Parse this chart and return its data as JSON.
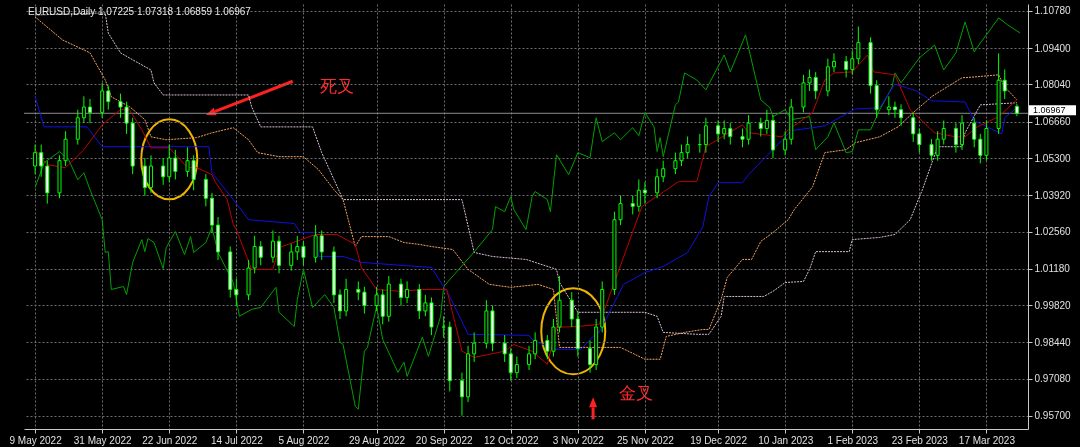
{
  "chart_data": {
    "type": "candlestick",
    "title": "EURUSD,Daily  1.07225 1.07318 1.06859 1.06967",
    "color": "#00ff00",
    "x": [
      "2022-05-09",
      "2022-05-11",
      "2022-05-13",
      "2022-05-17",
      "2022-05-19",
      "2022-05-23",
      "2022-05-25",
      "2022-05-27",
      "2022-05-31",
      "2022-06-02",
      "2022-06-06",
      "2022-06-08",
      "2022-06-10",
      "2022-06-14",
      "2022-06-16",
      "2022-06-20",
      "2022-06-22",
      "2022-06-24",
      "2022-06-28",
      "2022-06-30",
      "2022-07-04",
      "2022-07-06",
      "2022-07-08",
      "2022-07-12",
      "2022-07-14",
      "2022-07-18",
      "2022-07-20",
      "2022-07-22",
      "2022-07-26",
      "2022-07-28",
      "2022-08-01",
      "2022-08-03",
      "2022-08-05",
      "2022-08-09",
      "2022-08-11",
      "2022-08-15",
      "2022-08-17",
      "2022-08-19",
      "2022-08-23",
      "2022-08-25",
      "2022-08-29",
      "2022-08-31",
      "2022-09-02",
      "2022-09-06",
      "2022-09-08",
      "2022-09-12",
      "2022-09-14",
      "2022-09-16",
      "2022-09-20",
      "2022-09-22",
      "2022-09-26",
      "2022-09-28",
      "2022-09-30",
      "2022-10-04",
      "2022-10-06",
      "2022-10-10",
      "2022-10-12",
      "2022-10-14",
      "2022-10-18",
      "2022-10-20",
      "2022-10-24",
      "2022-10-26",
      "2022-10-28",
      "2022-11-01",
      "2022-11-03",
      "2022-11-07",
      "2022-11-09",
      "2022-11-11",
      "2022-11-15",
      "2022-11-17",
      "2022-11-21",
      "2022-11-23",
      "2022-11-25",
      "2022-11-29",
      "2022-12-01",
      "2022-12-05",
      "2022-12-07",
      "2022-12-09",
      "2022-12-13",
      "2022-12-15",
      "2022-12-19",
      "2022-12-21",
      "2022-12-23",
      "2022-12-27",
      "2022-12-29",
      "2023-01-02",
      "2023-01-04",
      "2023-01-06",
      "2023-01-10",
      "2023-01-12",
      "2023-01-16",
      "2023-01-18",
      "2023-01-20",
      "2023-01-24",
      "2023-01-26",
      "2023-01-30",
      "2023-02-01",
      "2023-02-03",
      "2023-02-07",
      "2023-02-09",
      "2023-02-13",
      "2023-02-15",
      "2023-02-17",
      "2023-02-21",
      "2023-02-23",
      "2023-02-27",
      "2023-03-01",
      "2023-03-03",
      "2023-03-07",
      "2023-03-09",
      "2023-03-13",
      "2023-03-15",
      "2023-03-17",
      "2023-03-21",
      "2023-03-23",
      "2023-03-27"
    ],
    "ohlc": [
      [
        1.05,
        1.058,
        1.047,
        1.055
      ],
      [
        1.055,
        1.058,
        1.046,
        1.05
      ],
      [
        1.05,
        1.052,
        1.036,
        1.04
      ],
      [
        1.04,
        1.054,
        1.038,
        1.052
      ],
      [
        1.052,
        1.063,
        1.05,
        1.06
      ],
      [
        1.06,
        1.071,
        1.058,
        1.068
      ],
      [
        1.068,
        1.076,
        1.066,
        1.072
      ],
      [
        1.072,
        1.075,
        1.066,
        1.07
      ],
      [
        1.07,
        1.081,
        1.068,
        1.078
      ],
      [
        1.078,
        1.08,
        1.071,
        1.074
      ],
      [
        1.074,
        1.077,
        1.068,
        1.072
      ],
      [
        1.072,
        1.074,
        1.062,
        1.066
      ],
      [
        1.066,
        1.068,
        1.047,
        1.05
      ],
      [
        1.05,
        1.053,
        1.039,
        1.042
      ],
      [
        1.042,
        1.054,
        1.04,
        1.05
      ],
      [
        1.05,
        1.053,
        1.043,
        1.046
      ],
      [
        1.046,
        1.058,
        1.044,
        1.053
      ],
      [
        1.053,
        1.056,
        1.045,
        1.048
      ],
      [
        1.048,
        1.057,
        1.046,
        1.052
      ],
      [
        1.052,
        1.054,
        1.041,
        1.045
      ],
      [
        1.045,
        1.047,
        1.035,
        1.038
      ],
      [
        1.038,
        1.04,
        1.025,
        1.028
      ],
      [
        1.028,
        1.031,
        1.015,
        1.018
      ],
      [
        1.018,
        1.02,
        1.001,
        1.004
      ],
      [
        1.004,
        1.008,
        0.998,
        1.002
      ],
      [
        1.002,
        1.015,
        1.0,
        1.012
      ],
      [
        1.012,
        1.024,
        1.01,
        1.02
      ],
      [
        1.02,
        1.022,
        1.013,
        1.016
      ],
      [
        1.016,
        1.026,
        1.014,
        1.022
      ],
      [
        1.022,
        1.024,
        1.01,
        1.013
      ],
      [
        1.013,
        1.021,
        1.011,
        1.018
      ],
      [
        1.018,
        1.024,
        1.015,
        1.02
      ],
      [
        1.02,
        1.022,
        1.013,
        1.016
      ],
      [
        1.016,
        1.028,
        1.014,
        1.024
      ],
      [
        1.024,
        1.026,
        1.015,
        1.018
      ],
      [
        1.018,
        1.02,
        0.999,
        1.002
      ],
      [
        1.002,
        1.004,
        0.993,
        0.996
      ],
      [
        0.996,
        1.008,
        0.994,
        1.004
      ],
      [
        1.004,
        1.007,
        1.0,
        1.003
      ],
      [
        1.003,
        1.005,
        0.995,
        0.998
      ],
      [
        0.998,
        1.005,
        0.996,
        1.002
      ],
      [
        1.002,
        1.004,
        0.991,
        0.994
      ],
      [
        0.994,
        1.009,
        0.992,
        1.006
      ],
      [
        1.006,
        1.008,
        0.998,
        1.001
      ],
      [
        1.001,
        1.007,
        0.999,
        1.004
      ],
      [
        1.004,
        1.006,
        0.993,
        0.996
      ],
      [
        0.996,
        1.002,
        0.994,
        0.999
      ],
      [
        0.999,
        1.001,
        0.987,
        0.99
      ],
      [
        0.99,
        0.994,
        0.986,
        0.99
      ],
      [
        0.99,
        0.992,
        0.966,
        0.97
      ],
      [
        0.97,
        0.973,
        0.957,
        0.964
      ],
      [
        0.964,
        0.983,
        0.962,
        0.98
      ],
      [
        0.98,
        0.988,
        0.977,
        0.984
      ],
      [
        0.984,
        1.0,
        0.982,
        0.996
      ],
      [
        0.996,
        0.998,
        0.981,
        0.984
      ],
      [
        0.984,
        0.987,
        0.977,
        0.98
      ],
      [
        0.98,
        0.982,
        0.97,
        0.973
      ],
      [
        0.973,
        0.979,
        0.971,
        0.976
      ],
      [
        0.976,
        0.983,
        0.974,
        0.98
      ],
      [
        0.98,
        0.988,
        0.978,
        0.985
      ],
      [
        0.985,
        0.987,
        0.978,
        0.981
      ],
      [
        0.981,
        0.993,
        0.979,
        0.99
      ],
      [
        0.99,
        1.009,
        0.988,
        1.0
      ],
      [
        1.0,
        1.003,
        0.99,
        0.993
      ],
      [
        0.993,
        0.996,
        0.979,
        0.982
      ],
      [
        0.982,
        0.985,
        0.973,
        0.976
      ],
      [
        0.976,
        0.993,
        0.974,
        0.99
      ],
      [
        0.99,
        1.007,
        0.988,
        1.004
      ],
      [
        1.004,
        1.033,
        1.002,
        1.03
      ],
      [
        1.03,
        1.039,
        1.028,
        1.036
      ],
      [
        1.036,
        1.039,
        1.032,
        1.035
      ],
      [
        1.035,
        1.045,
        1.033,
        1.041
      ],
      [
        1.041,
        1.044,
        1.036,
        1.04
      ],
      [
        1.04,
        1.049,
        1.038,
        1.046
      ],
      [
        1.046,
        1.052,
        1.044,
        1.049
      ],
      [
        1.049,
        1.055,
        1.047,
        1.052
      ],
      [
        1.052,
        1.058,
        1.05,
        1.055
      ],
      [
        1.055,
        1.061,
        1.053,
        1.058
      ],
      [
        1.058,
        1.062,
        1.055,
        1.058
      ],
      [
        1.058,
        1.068,
        1.055,
        1.065
      ],
      [
        1.065,
        1.067,
        1.059,
        1.062
      ],
      [
        1.062,
        1.067,
        1.06,
        1.064
      ],
      [
        1.064,
        1.066,
        1.058,
        1.061
      ],
      [
        1.061,
        1.064,
        1.057,
        1.06
      ],
      [
        1.06,
        1.069,
        1.058,
        1.066
      ],
      [
        1.066,
        1.068,
        1.061,
        1.064
      ],
      [
        1.064,
        1.071,
        1.062,
        1.067
      ],
      [
        1.067,
        1.069,
        1.053,
        1.056
      ],
      [
        1.056,
        1.063,
        1.054,
        1.06
      ],
      [
        1.06,
        1.075,
        1.058,
        1.072
      ],
      [
        1.072,
        1.084,
        1.07,
        1.081
      ],
      [
        1.081,
        1.086,
        1.078,
        1.083
      ],
      [
        1.083,
        1.085,
        1.075,
        1.078
      ],
      [
        1.078,
        1.09,
        1.076,
        1.087
      ],
      [
        1.087,
        1.092,
        1.085,
        1.089
      ],
      [
        1.089,
        1.091,
        1.083,
        1.086
      ],
      [
        1.086,
        1.093,
        1.084,
        1.09
      ],
      [
        1.09,
        1.102,
        1.088,
        1.096
      ],
      [
        1.096,
        1.098,
        1.077,
        1.08
      ],
      [
        1.08,
        1.082,
        1.068,
        1.071
      ],
      [
        1.071,
        1.076,
        1.069,
        1.072
      ],
      [
        1.072,
        1.074,
        1.068,
        1.071
      ],
      [
        1.071,
        1.073,
        1.065,
        1.068
      ],
      [
        1.068,
        1.07,
        1.059,
        1.062
      ],
      [
        1.062,
        1.064,
        1.055,
        1.058
      ],
      [
        1.058,
        1.06,
        1.052,
        1.054
      ],
      [
        1.054,
        1.063,
        1.052,
        1.06
      ],
      [
        1.06,
        1.067,
        1.058,
        1.064
      ],
      [
        1.064,
        1.066,
        1.055,
        1.058
      ],
      [
        1.058,
        1.069,
        1.056,
        1.066
      ],
      [
        1.066,
        1.068,
        1.057,
        1.06
      ],
      [
        1.06,
        1.062,
        1.051,
        1.054
      ],
      [
        1.054,
        1.067,
        1.052,
        1.064
      ],
      [
        1.064,
        1.092,
        1.062,
        1.082
      ],
      [
        1.082,
        1.086,
        1.075,
        1.078
      ],
      [
        1.07225,
        1.07318,
        1.06859,
        1.06967
      ]
    ],
    "series": [
      {
        "type": "line",
        "color": "#d8bfd8",
        "line_style": "dotted",
        "x": [
          "2022-05-09",
          "2022-06-01",
          "2022-06-02",
          "2022-06-06",
          "2022-06-10",
          "2022-06-16",
          "2022-06-17",
          "2022-06-20",
          "2022-07-18",
          "2022-07-19",
          "2022-07-22",
          "2022-08-08",
          "2022-08-11",
          "2022-08-18",
          "2022-09-26",
          "2022-09-30",
          "2022-10-06",
          "2022-10-17",
          "2022-10-20",
          "2022-10-27",
          "2022-10-28",
          "2022-11-03",
          "2022-11-25",
          "2022-11-29",
          "2022-12-01",
          "2022-12-12",
          "2022-12-16",
          "2022-12-20",
          "2022-12-21",
          "2023-01-03",
          "2023-01-06",
          "2023-01-10",
          "2023-01-16",
          "2023-01-18",
          "2023-01-20",
          "2023-01-31",
          "2023-02-01",
          "2023-02-10",
          "2023-02-15",
          "2023-02-20",
          "2023-02-24",
          "2023-03-01",
          "2023-03-09",
          "2023-03-10",
          "2023-03-15",
          "2023-03-27"
        ],
        "values": [
          1.1063,
          1.1071,
          1.0996,
          1.0922,
          1.0896,
          1.0858,
          1.081,
          1.0765,
          1.0765,
          1.0721,
          1.0646,
          1.0646,
          1.055,
          1.0375,
          1.0375,
          1.0178,
          1.0163,
          1.0152,
          1.0141,
          1.0115,
          1.0066,
          0.9955,
          0.9955,
          0.994,
          0.988,
          0.9873,
          0.9873,
          0.994,
          1.0014,
          1.0014,
          1.0033,
          1.0066,
          1.007,
          1.0115,
          1.0181,
          1.0181,
          1.0226,
          1.0234,
          1.0245,
          1.03,
          1.0412,
          1.0572,
          1.0572,
          1.0624,
          1.0728,
          1.0736
        ]
      },
      {
        "type": "line",
        "color": "#f4a460",
        "line_style": "dotted",
        "x": [
          "2022-05-09",
          "2022-05-18",
          "2022-05-27",
          "2022-06-01",
          "2022-06-03",
          "2022-06-09",
          "2022-06-14",
          "2022-06-16",
          "2022-06-21",
          "2022-07-01",
          "2022-07-06",
          "2022-07-13",
          "2022-07-18",
          "2022-07-21",
          "2022-07-28",
          "2022-08-05",
          "2022-08-10",
          "2022-08-15",
          "2022-08-18",
          "2022-08-22",
          "2022-08-24",
          "2022-09-02",
          "2022-09-07",
          "2022-09-12",
          "2022-09-16",
          "2022-09-23",
          "2022-09-28",
          "2022-10-05",
          "2022-10-12",
          "2022-10-21",
          "2022-10-26",
          "2022-10-28",
          "2022-11-17",
          "2022-11-25",
          "2022-11-30",
          "2022-12-02",
          "2022-12-08",
          "2022-12-14",
          "2022-12-16",
          "2022-12-20",
          "2022-12-22",
          "2022-12-27",
          "2022-12-30",
          "2023-01-02",
          "2023-01-06",
          "2023-01-11",
          "2023-01-13",
          "2023-01-19",
          "2023-01-23",
          "2023-01-30",
          "2023-02-02",
          "2023-02-10",
          "2023-02-16",
          "2023-02-21",
          "2023-02-27",
          "2023-03-01",
          "2023-03-09",
          "2023-03-13",
          "2023-03-21",
          "2023-03-23",
          "2023-03-27"
        ],
        "values": [
          1.1056,
          1.097,
          1.0922,
          1.0821,
          1.0758,
          1.0721,
          1.0673,
          1.0609,
          1.0598,
          1.0606,
          1.0624,
          1.0643,
          1.0598,
          1.055,
          1.0535,
          1.0535,
          1.0486,
          1.0412,
          1.0375,
          1.02,
          1.0237,
          1.0237,
          1.0215,
          1.0208,
          1.02,
          1.0189,
          1.0115,
          1.0059,
          1.0048,
          1.0059,
          1.004,
          0.9824,
          0.9824,
          0.978,
          0.978,
          0.9865,
          0.988,
          0.9891,
          0.9891,
          1.0003,
          1.0085,
          1.0152,
          1.0152,
          1.0219,
          1.0252,
          1.03,
          1.0338,
          1.0423,
          1.055,
          1.0561,
          1.0587,
          1.0609,
          1.0646,
          1.0699,
          1.0758,
          1.0773,
          1.0829,
          1.0832,
          1.084,
          1.0795,
          1.0747
        ]
      },
      {
        "type": "line",
        "color": "#00a000",
        "x": [
          "2022-05-09",
          "2022-05-12",
          "2022-05-17",
          "2022-05-20",
          "2022-05-23",
          "2022-05-25",
          "2022-05-27",
          "2022-05-31",
          "2022-06-01",
          "2022-06-02",
          "2022-06-03",
          "2022-06-07",
          "2022-06-08",
          "2022-06-10",
          "2022-06-13",
          "2022-06-14",
          "2022-06-15",
          "2022-06-17",
          "2022-06-20",
          "2022-06-21",
          "2022-06-24",
          "2022-06-27",
          "2022-06-29",
          "2022-06-30",
          "2022-07-04",
          "2022-07-06",
          "2022-07-08",
          "2022-07-13",
          "2022-07-15",
          "2022-07-19",
          "2022-07-22",
          "2022-07-27",
          "2022-07-28",
          "2022-08-02",
          "2022-08-03",
          "2022-08-05",
          "2022-08-08",
          "2022-08-12",
          "2022-08-15",
          "2022-08-17",
          "2022-08-18",
          "2022-08-22",
          "2022-08-23",
          "2022-08-25",
          "2022-08-26",
          "2022-08-29",
          "2022-08-31",
          "2022-09-05",
          "2022-09-07",
          "2022-09-08",
          "2022-09-13",
          "2022-09-15",
          "2022-09-19",
          "2022-09-20",
          "2022-09-30",
          "2022-10-06",
          "2022-10-07",
          "2022-10-10",
          "2022-10-12",
          "2022-10-13",
          "2022-10-17",
          "2022-10-19",
          "2022-10-20",
          "2022-10-24",
          "2022-10-25",
          "2022-10-27",
          "2022-10-31",
          "2022-11-03",
          "2022-11-07",
          "2022-11-09",
          "2022-11-11",
          "2022-11-15",
          "2022-11-17",
          "2022-11-21",
          "2022-11-23",
          "2022-11-25",
          "2022-11-28",
          "2022-11-29",
          "2022-11-30",
          "2022-12-01",
          "2022-12-05",
          "2022-12-06",
          "2022-12-08",
          "2022-12-12",
          "2022-12-15",
          "2022-12-21",
          "2022-12-23",
          "2022-12-28",
          "2023-01-02",
          "2023-01-05",
          "2023-01-06",
          "2023-01-10",
          "2023-01-12",
          "2023-01-18",
          "2023-01-20",
          "2023-01-24",
          "2023-01-26",
          "2023-01-30",
          "2023-02-01",
          "2023-02-03",
          "2023-02-07",
          "2023-02-10",
          "2023-02-14",
          "2023-02-15",
          "2023-02-17",
          "2023-02-23",
          "2023-02-28",
          "2023-03-03",
          "2023-03-07",
          "2023-03-10",
          "2023-03-13",
          "2023-03-15",
          "2023-03-17",
          "2023-03-21",
          "2023-03-24",
          "2023-03-28"
        ],
        "values": [
          1.042,
          1.0513,
          1.0554,
          1.0524,
          1.0449,
          1.0475,
          1.0412,
          1.03,
          1.0178,
          1.0181,
          1.004,
          1.0051,
          1.0021,
          1.0141,
          1.0226,
          1.0181,
          1.023,
          1.0215,
          1.0118,
          1.0196,
          1.0256,
          1.017,
          1.0237,
          1.0178,
          1.0215,
          1.0271,
          1.0178,
          1.0066,
          0.994,
          0.9966,
          0.9973,
          1.0048,
          0.9955,
          0.9902,
          1.0003,
          1.0115,
          0.9973,
          1.0021,
          0.9973,
          0.9843,
          0.9835,
          0.9605,
          0.9594,
          0.981,
          0.9824,
          0.9977,
          0.9854,
          0.9731,
          0.9769,
          0.9716,
          0.9862,
          0.9791,
          0.994,
          1.0051,
          1.018,
          1.0263,
          1.0349,
          1.033,
          1.0386,
          1.0338,
          1.0263,
          1.0386,
          1.0405,
          1.0375,
          1.033,
          1.0542,
          1.0468,
          1.055,
          1.0531,
          1.068,
          1.0591,
          1.0624,
          1.0598,
          1.0643,
          1.0613,
          1.0699,
          1.0646,
          1.0554,
          1.0606,
          1.0535,
          1.0728,
          1.0739,
          1.0847,
          1.0821,
          1.0784,
          1.0914,
          1.0851,
          1.0989,
          1.0747,
          1.0717,
          1.0684,
          1.071,
          1.0673,
          1.0684,
          1.0561,
          1.0609,
          1.0661,
          1.055,
          1.0554,
          1.0635,
          1.0635,
          1.071,
          1.0792,
          1.0847,
          1.081,
          1.0903,
          1.0951,
          1.0858,
          1.0922,
          1.1037,
          1.0925,
          1.0959,
          1.0989,
          1.1052,
          1.1026,
          1.0996
        ]
      },
      {
        "type": "line",
        "color": "#1010e0",
        "x": [
          "2022-05-09",
          "2022-05-12",
          "2022-05-26",
          "2022-05-31",
          "2022-07-05",
          "2022-07-06",
          "2022-07-13",
          "2022-07-18",
          "2022-08-02",
          "2022-08-04",
          "2022-08-09",
          "2022-08-10",
          "2022-08-18",
          "2022-08-24",
          "2022-09-16",
          "2022-09-22",
          "2022-09-28",
          "2022-10-18",
          "2022-10-19",
          "2022-10-26",
          "2022-11-04",
          "2022-11-08",
          "2022-11-10",
          "2022-11-16",
          "2022-11-18",
          "2022-11-25",
          "2022-12-01",
          "2022-12-09",
          "2022-12-14",
          "2022-12-16",
          "2022-12-19",
          "2022-12-27",
          "2022-12-29",
          "2023-01-12",
          "2023-01-19",
          "2023-01-23",
          "2023-02-02",
          "2023-02-10",
          "2023-02-15",
          "2023-02-22",
          "2023-02-27",
          "2023-03-10",
          "2023-03-13",
          "2023-03-22",
          "2023-03-23",
          "2023-03-27"
        ],
        "values": [
          1.0758,
          1.0646,
          1.0646,
          1.0572,
          1.0572,
          1.0475,
          1.0375,
          1.03,
          1.0286,
          1.0252,
          1.0252,
          1.0163,
          1.0163,
          1.0141,
          1.0122,
          1.0014,
          0.9873,
          0.9869,
          0.9854,
          0.9817,
          0.9817,
          0.9865,
          0.988,
          1.0014,
          1.0059,
          1.0103,
          1.0126,
          1.0178,
          1.0274,
          1.0386,
          1.0438,
          1.0438,
          1.0468,
          1.0632,
          1.0643,
          1.065,
          1.0713,
          1.0717,
          1.0806,
          1.078,
          1.0743,
          1.0739,
          1.0669,
          1.062,
          1.068,
          1.0717
        ]
      },
      {
        "type": "line",
        "color": "#c00000",
        "x": [
          "2022-05-09",
          "2022-05-13",
          "2022-05-19",
          "2022-05-25",
          "2022-05-31",
          "2022-06-06",
          "2022-06-09",
          "2022-06-13",
          "2022-06-16",
          "2022-06-22",
          "2022-06-28",
          "2022-07-01",
          "2022-07-06",
          "2022-07-07",
          "2022-07-11",
          "2022-07-13",
          "2022-07-14",
          "2022-07-19",
          "2022-07-26",
          "2022-07-28",
          "2022-08-09",
          "2022-08-16",
          "2022-08-22",
          "2022-08-24",
          "2022-08-29",
          "2022-09-06",
          "2022-09-13",
          "2022-09-21",
          "2022-09-26",
          "2022-09-30",
          "2022-10-10",
          "2022-10-13",
          "2022-10-19",
          "2022-10-24",
          "2022-10-27",
          "2022-11-03",
          "2022-11-10",
          "2022-11-24",
          "2022-12-06",
          "2022-12-12",
          "2022-12-15",
          "2022-12-27",
          "2022-12-29",
          "2023-01-09",
          "2023-01-11",
          "2023-01-19",
          "2023-01-23",
          "2023-01-26",
          "2023-02-01",
          "2023-02-06",
          "2023-02-08",
          "2023-02-15",
          "2023-02-20",
          "2023-02-28",
          "2023-03-07",
          "2023-03-10",
          "2023-03-14",
          "2023-03-21",
          "2023-03-27"
        ],
        "values": [
          1.0561,
          1.0505,
          1.0494,
          1.0561,
          1.0654,
          1.071,
          1.071,
          1.0635,
          1.0568,
          1.0568,
          1.0494,
          1.0494,
          1.0468,
          1.0442,
          1.0375,
          1.0282,
          1.0263,
          1.0115,
          1.0115,
          1.0196,
          1.0245,
          1.0245,
          1.0208,
          1.0122,
          1.004,
          1.0033,
          1.004,
          1.004,
          0.981,
          0.9787,
          0.981,
          0.9835,
          0.981,
          0.9761,
          0.9899,
          0.9902,
          0.991,
          1.0349,
          1.0442,
          1.0442,
          1.0572,
          1.0654,
          1.0624,
          1.0609,
          1.0635,
          1.0699,
          1.0821,
          1.0847,
          1.0851,
          1.0914,
          1.0851,
          1.084,
          1.071,
          1.0624,
          1.0609,
          1.0609,
          1.0646,
          1.0684,
          1.0747
        ]
      }
    ],
    "xlim": [
      "2022-05-07",
      "2023-03-29"
    ],
    "xticks": [
      {
        "value": "2022-05-09",
        "label": "9 May 2022"
      },
      {
        "value": "2022-05-31",
        "label": "31 May 2022"
      },
      {
        "value": "2022-06-22",
        "label": "22 Jun 2022"
      },
      {
        "value": "2022-07-14",
        "label": "14 Jul 2022"
      },
      {
        "value": "2022-08-05",
        "label": "5 Aug 2022"
      },
      {
        "value": "2022-08-29",
        "label": "29 Aug 2022"
      },
      {
        "value": "2022-09-20",
        "label": "20 Sep 2022"
      },
      {
        "value": "2022-10-12",
        "label": "12 Oct 2022"
      },
      {
        "value": "2022-11-03",
        "label": "3 Nov 2022"
      },
      {
        "value": "2022-11-25",
        "label": "25 Nov 2022"
      },
      {
        "value": "2022-12-19",
        "label": "19 Dec 2022"
      },
      {
        "value": "2023-01-10",
        "label": "10 Jan 2023"
      },
      {
        "value": "2023-02-01",
        "label": "1 Feb 2023"
      },
      {
        "value": "2023-02-23",
        "label": "23 Feb 2023"
      },
      {
        "value": "2023-03-17",
        "label": "17 Mar 2023"
      }
    ],
    "ylim": [
      0.952,
      1.1104
    ],
    "yticks": [
      {
        "value": 0.957,
        "label": "0.95700"
      },
      {
        "value": 0.9708,
        "label": "0.97080"
      },
      {
        "value": 0.9844,
        "label": "0.98440"
      },
      {
        "value": 0.9982,
        "label": "0.99820"
      },
      {
        "value": 1.0118,
        "label": "1.01180"
      },
      {
        "value": 1.0256,
        "label": "1.02560"
      },
      {
        "value": 1.0392,
        "label": "1.03920"
      },
      {
        "value": 1.053,
        "label": "1.05300"
      },
      {
        "value": 1.0666,
        "label": "1.06660"
      },
      {
        "value": 1.0804,
        "label": "1.08040"
      },
      {
        "value": 1.094,
        "label": "1.09400"
      },
      {
        "value": 1.1078,
        "label": "1.10780"
      }
    ],
    "grid": true,
    "ref_lines": [
      {
        "axis": "y",
        "value": 1.06967,
        "label": "1.06967",
        "color": "#8c8c8c"
      }
    ],
    "annotations": [
      "死叉",
      "金叉"
    ]
  }
}
